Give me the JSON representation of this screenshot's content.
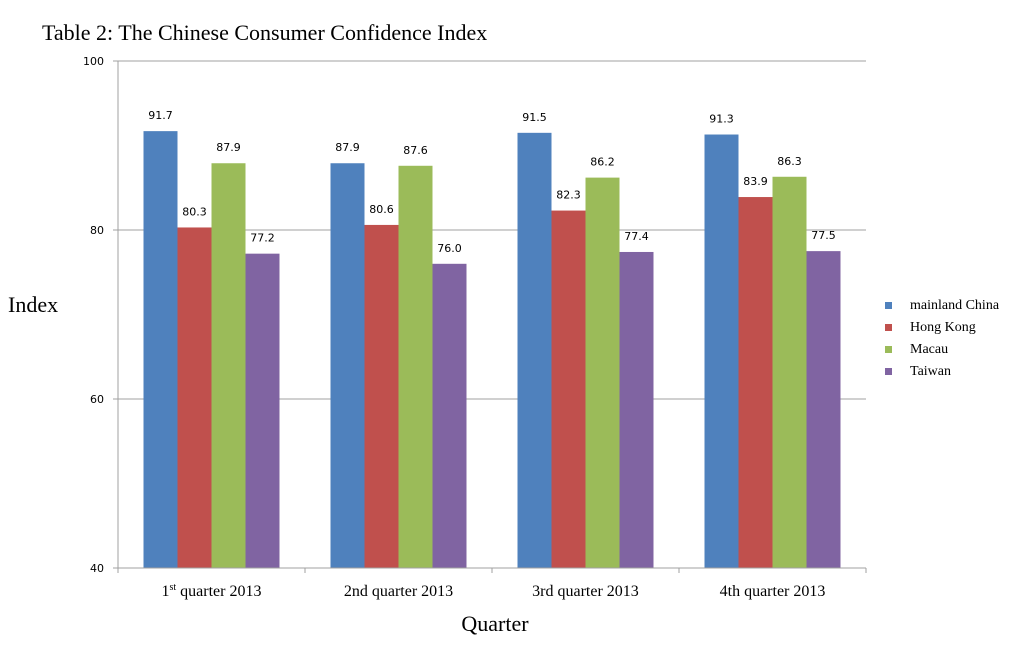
{
  "chart_data": {
    "type": "bar",
    "title": "Table 2: The Chinese Consumer Confidence Index",
    "xlabel": "Quarter",
    "ylabel": "Index",
    "ylim": [
      40,
      100
    ],
    "yticks": [
      "40",
      "60",
      "80",
      "100"
    ],
    "grid": true,
    "legend_position": "right",
    "categories": [
      {
        "main": "1",
        "sup": "st",
        "rest": " quarter 2013"
      },
      {
        "main": "2nd quarter 2013",
        "sup": "",
        "rest": ""
      },
      {
        "main": "3rd quarter 2013",
        "sup": "",
        "rest": ""
      },
      {
        "main": "4th quarter 2013",
        "sup": "",
        "rest": ""
      }
    ],
    "series": [
      {
        "name": "mainland China",
        "color": "#4F81BD",
        "values": [
          91.7,
          87.9,
          91.5,
          91.3
        ],
        "labels": [
          "91.7",
          "87.9",
          "91.5",
          "91.3"
        ]
      },
      {
        "name": "Hong Kong",
        "color": "#C0504D",
        "values": [
          80.3,
          80.6,
          82.3,
          83.9
        ],
        "labels": [
          "80.3",
          "80.6",
          "82.3",
          "83.9"
        ]
      },
      {
        "name": "Macau",
        "color": "#9BBB59",
        "values": [
          87.9,
          87.6,
          86.2,
          86.3
        ],
        "labels": [
          "87.9",
          "87.6",
          "86.2",
          "86.3"
        ]
      },
      {
        "name": "Taiwan",
        "color": "#8064A2",
        "values": [
          77.2,
          76.0,
          77.4,
          77.5
        ],
        "labels": [
          "77.2",
          "76.0",
          "77.4",
          "77.5"
        ]
      }
    ]
  }
}
